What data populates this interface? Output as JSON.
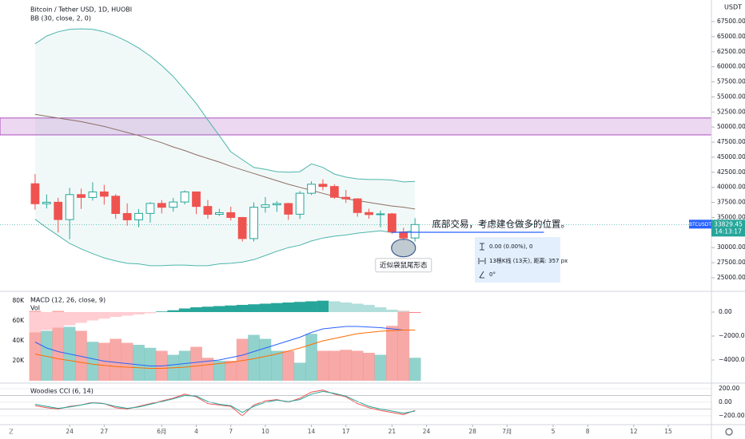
{
  "chart_data": [
    {
      "type": "candlestick",
      "title": "Bitcoin / Tether USD, 1D, HUOBI",
      "subtitle": "BB (30, close, 2, 0)",
      "unit": "USDT",
      "symbol": "BTCUSDT",
      "countdown": "14:13:17",
      "open": [
        40600,
        37280,
        37528,
        34655,
        38796,
        38324,
        39241,
        38529,
        35663,
        34608,
        35678,
        37333,
        36693,
        37568,
        39246,
        36829,
        35520,
        35797,
        35000,
        31500,
        36700,
        37100,
        37313,
        35545,
        39020,
        40516,
        40144,
        38349,
        38092,
        35820,
        35483,
        35600,
        32600,
        31600
      ],
      "high": [
        42200,
        38830,
        38270,
        39920,
        39791,
        40841,
        40411,
        38856,
        37338,
        36400,
        37534,
        37894,
        38231,
        39476,
        39289,
        37917,
        36436,
        36800,
        35100,
        37500,
        38400,
        37680,
        37437,
        39380,
        41000,
        41330,
        40500,
        39560,
        38200,
        36457,
        36140,
        35750,
        33300,
        34880
      ],
      "low": [
        36300,
        36500,
        32500,
        31400,
        36419,
        37800,
        37134,
        34779,
        33632,
        33379,
        34153,
        35666,
        35966,
        37170,
        35555,
        34800,
        35250,
        34500,
        31000,
        31000,
        35800,
        35936,
        34600,
        34757,
        38730,
        39506,
        38100,
        37400,
        35130,
        34800,
        33350,
        32300,
        31000,
        31000
      ],
      "close": [
        37280,
        37528,
        34655,
        38796,
        38324,
        39241,
        38529,
        35663,
        34608,
        35678,
        37333,
        36693,
        37568,
        39246,
        36829,
        35520,
        35797,
        35000,
        31500,
        36700,
        37100,
        37313,
        35545,
        39020,
        40516,
        40144,
        38349,
        38092,
        35820,
        35483,
        35600,
        32600,
        31600,
        33829.45
      ],
      "up_color": "#26a69a",
      "down_color": "#ef5350",
      "bands": {
        "color": "#4db6ac",
        "basis_color": "#8d6e63",
        "upper": [
          63800,
          65100,
          65800,
          66200,
          66300,
          66200,
          65800,
          65100,
          64200,
          63100,
          61800,
          60200,
          58400,
          56200,
          53900,
          51200,
          48600,
          45900,
          44600,
          43300,
          43000,
          42600,
          42500,
          42600,
          43900,
          43300,
          42200,
          41700,
          41400,
          41300,
          41300,
          41200,
          40900,
          41000
        ],
        "basis": [
          52100,
          51800,
          51500,
          51200,
          50900,
          50500,
          50100,
          49600,
          49100,
          48600,
          48000,
          47400,
          46700,
          46100,
          45400,
          44800,
          44200,
          43500,
          42900,
          42300,
          41700,
          41100,
          40500,
          40000,
          39500,
          39000,
          38500,
          38100,
          37800,
          37500,
          37200,
          36900,
          36700,
          36400
        ],
        "lower": [
          34700,
          33300,
          32000,
          30700,
          29800,
          29000,
          28300,
          27800,
          27400,
          27300,
          27000,
          27000,
          27100,
          27100,
          27000,
          27000,
          27300,
          27400,
          27600,
          28000,
          28700,
          29400,
          30000,
          30400,
          31100,
          31600,
          31900,
          32100,
          32400,
          32600,
          32800,
          32500,
          32600,
          32800
        ]
      },
      "zone": [
        48700,
        51500
      ],
      "zone_color": "#9c27b0",
      "support_line": {
        "value": 32550,
        "from": 31,
        "to": 44.2,
        "color": "#2962ff"
      },
      "annotation": "底部交易，考虑建仓做多的位置。",
      "pattern_label": "近似袋鼠尾形态",
      "pattern_candle": 32,
      "measure": [
        "0.00 (0.00%), 0",
        "13根K线 (13天), 距离: 357 px",
        "0°"
      ],
      "ylim": [
        22750,
        71075
      ],
      "yticks": [
        {
          "value": 25000,
          "label": "25000.00"
        },
        {
          "value": 27500,
          "label": "27500.00"
        },
        {
          "value": 30000,
          "label": "30000.00"
        },
        {
          "value": 32500,
          "label": "32500.00"
        },
        {
          "value": 35000,
          "label": "35000.00"
        },
        {
          "value": 37500,
          "label": "37500.00"
        },
        {
          "value": 40000,
          "label": "40000.00"
        },
        {
          "value": 42500,
          "label": "42500.00"
        },
        {
          "value": 45000,
          "label": "45000.00"
        },
        {
          "value": 47500,
          "label": "47500.00"
        },
        {
          "value": 50000,
          "label": "50000.00"
        },
        {
          "value": 52500,
          "label": "52500.00"
        },
        {
          "value": 55000,
          "label": "55000.00"
        },
        {
          "value": 57500,
          "label": "57500.00"
        },
        {
          "value": 60000,
          "label": "60000.00"
        },
        {
          "value": 62500,
          "label": "62500.00"
        },
        {
          "value": 65000,
          "label": "65000.00"
        },
        {
          "value": 67500,
          "label": "67500.00"
        }
      ],
      "xlim": [
        -3.05,
        58.75
      ],
      "xticks": [
        {
          "value": 3,
          "label": "24"
        },
        {
          "value": 6,
          "label": "27"
        },
        {
          "value": 11,
          "label": "6月"
        },
        {
          "value": 14,
          "label": "4"
        },
        {
          "value": 17,
          "label": "7"
        },
        {
          "value": 20,
          "label": "10"
        },
        {
          "value": 24,
          "label": "14"
        },
        {
          "value": 27,
          "label": "17"
        },
        {
          "value": 31,
          "label": "21"
        },
        {
          "value": 34,
          "label": "24"
        },
        {
          "value": 38,
          "label": "28"
        },
        {
          "value": 41,
          "label": "7月"
        },
        {
          "value": 45,
          "label": "5"
        },
        {
          "value": 48,
          "label": "8"
        },
        {
          "value": 52,
          "label": "12"
        },
        {
          "value": 55,
          "label": "15"
        }
      ]
    },
    {
      "type": "macd",
      "title": "MACD (12, 26, close, 9)",
      "series": [
        {
          "name": "Vol",
          "values": [
            70000,
            50000,
            70000,
            54000,
            50000,
            39000,
            38000,
            42000,
            38000,
            36000,
            33000,
            30000,
            26000,
            30000,
            34000,
            23000,
            20000,
            20000,
            42000,
            46000,
            42000,
            30000,
            30000,
            18000,
            47000,
            30000,
            30000,
            31000,
            30000,
            28000,
            26000,
            55000,
            70000,
            23000
          ]
        },
        {
          "kind": "histogram",
          "axis": "y2",
          "values": [
            -1700,
            -1500,
            -1300,
            -1100,
            -900,
            -700,
            -550,
            -400,
            -300,
            -200,
            -100,
            50,
            150,
            300,
            400,
            450,
            500,
            550,
            600,
            650,
            700,
            750,
            800,
            850,
            900,
            950,
            900,
            800,
            700,
            600,
            400,
            200,
            50,
            -50
          ]
        },
        {
          "axis": "y2",
          "color": "#2962ff",
          "values": [
            -2500,
            -3000,
            -3300,
            -3500,
            -3700,
            -3900,
            -4100,
            -4200,
            -4300,
            -4400,
            -4500,
            -4500,
            -4400,
            -4300,
            -4200,
            -4100,
            -4000,
            -3800,
            -3600,
            -3300,
            -3000,
            -2700,
            -2400,
            -2100,
            -1700,
            -1400,
            -1300,
            -1200,
            -1200,
            -1250,
            -1300,
            -1400,
            -1500,
            -1500
          ]
        },
        {
          "axis": "y2",
          "color": "#ff6d00",
          "values": [
            -3500,
            -3700,
            -3900,
            -4050,
            -4200,
            -4350,
            -4450,
            -4550,
            -4600,
            -4650,
            -4700,
            -4700,
            -4650,
            -4600,
            -4500,
            -4400,
            -4300,
            -4200,
            -4050,
            -3900,
            -3700,
            -3500,
            -3250,
            -3000,
            -2700,
            -2400,
            -2200,
            -2000,
            -1800,
            -1700,
            -1600,
            -1550,
            -1500,
            -1500
          ]
        }
      ],
      "ylim": [
        -2400,
        89600
      ],
      "yticks": [
        {
          "value": 20000,
          "label": "20K"
        },
        {
          "value": 40000,
          "label": "40K"
        },
        {
          "value": 60000,
          "label": "60K"
        },
        {
          "value": 80000,
          "label": "80K"
        }
      ],
      "y2lim": [
        -5930,
        1730
      ],
      "y2ticks": [
        {
          "value": 0,
          "label": "0.00"
        },
        {
          "value": -2000,
          "label": "−2000.00"
        },
        {
          "value": -4000,
          "label": "−4000.00"
        }
      ]
    },
    {
      "type": "line",
      "title": "Woodies CCI (6, 14)",
      "series": [
        {
          "color": "#ef5350",
          "values": [
            -50,
            -80,
            -100,
            -60,
            -40,
            0,
            -20,
            -80,
            -100,
            -60,
            -20,
            20,
            60,
            120,
            80,
            -20,
            -40,
            -60,
            -200,
            -40,
            20,
            40,
            0,
            60,
            150,
            180,
            120,
            80,
            -20,
            -80,
            -120,
            -150,
            -180,
            -120
          ]
        },
        {
          "color": "#26a69a",
          "values": [
            -30,
            -60,
            -90,
            -70,
            -40,
            -10,
            -20,
            -60,
            -90,
            -70,
            -30,
            10,
            50,
            100,
            90,
            10,
            -30,
            -50,
            -150,
            -60,
            0,
            30,
            10,
            40,
            120,
            160,
            130,
            90,
            10,
            -60,
            -100,
            -130,
            -160,
            -130
          ]
        }
      ],
      "bands": [
        100,
        -100
      ],
      "ylim": [
        -330,
        282
      ],
      "yticks": [
        {
          "value": 200,
          "label": "200.00"
        },
        {
          "value": 0,
          "label": "0.00"
        },
        {
          "value": -200,
          "label": "−200.00"
        }
      ]
    }
  ]
}
